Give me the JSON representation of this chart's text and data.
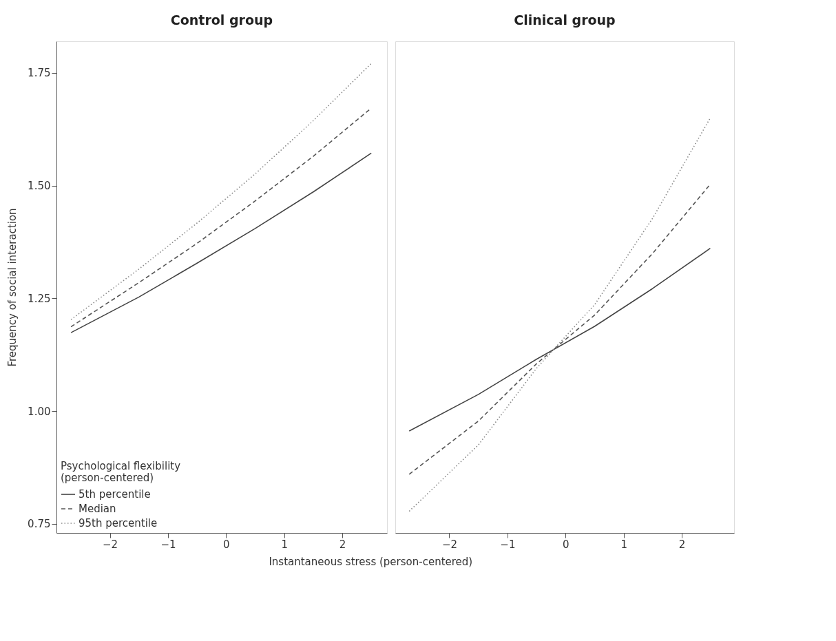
{
  "chart_data": [
    {
      "type": "line",
      "title": "Control group",
      "ylabel": "Frequency of social interaction",
      "xlabel": "Instantaneous stress (person-centered)",
      "legend_title": "Psychological flexibility\n(person-centered)",
      "legend": "bottom left",
      "grid": false,
      "xlim": [
        -2.92,
        2.77
      ],
      "xticks": [
        -2,
        -1,
        0,
        1,
        2
      ],
      "ylim": [
        0.73,
        1.82
      ],
      "yticks": [
        {
          "value": 0.75,
          "label": "0.75"
        },
        {
          "value": 1.0,
          "label": "1.00"
        },
        {
          "value": 1.25,
          "label": "1.25"
        },
        {
          "value": 1.5,
          "label": "1.50"
        },
        {
          "value": 1.75,
          "label": "1.75"
        }
      ],
      "x": [
        -2.67,
        -1.5,
        -0.5,
        0.5,
        1.5,
        2.5
      ],
      "series": [
        {
          "name": "5th percentile",
          "color": "#444444",
          "line_style": "solid",
          "values": [
            1.174,
            1.253,
            1.328,
            1.405,
            1.486,
            1.572
          ]
        },
        {
          "name": "Median",
          "color": "#555555",
          "line_style": "dashed",
          "values": [
            1.187,
            1.285,
            1.372,
            1.466,
            1.565,
            1.672
          ]
        },
        {
          "name": "95th percentile",
          "color": "#8a8a8a",
          "line_style": "dotted",
          "values": [
            1.203,
            1.315,
            1.417,
            1.526,
            1.644,
            1.771
          ]
        }
      ]
    },
    {
      "type": "line",
      "title": "Clinical group",
      "tick_labels": "x",
      "legend": false,
      "grid": false,
      "xlim": [
        -2.93,
        2.9
      ],
      "xticks": [
        -2,
        -1,
        0,
        1,
        2
      ],
      "ylim": [
        0.73,
        1.82
      ],
      "x": [
        -2.69,
        -1.5,
        -0.5,
        0.5,
        1.5,
        2.49
      ],
      "series": [
        {
          "name": "5th percentile",
          "color": "#444444",
          "line_style": "solid",
          "values": [
            0.956,
            1.037,
            1.115,
            1.188,
            1.272,
            1.361
          ]
        },
        {
          "name": "Median",
          "color": "#555555",
          "line_style": "dashed",
          "values": [
            0.86,
            0.978,
            1.105,
            1.213,
            1.35,
            1.503
          ]
        },
        {
          "name": "95th percentile",
          "color": "#8a8a8a",
          "line_style": "dotted",
          "values": [
            0.778,
            0.925,
            1.095,
            1.236,
            1.428,
            1.65
          ]
        }
      ]
    }
  ]
}
